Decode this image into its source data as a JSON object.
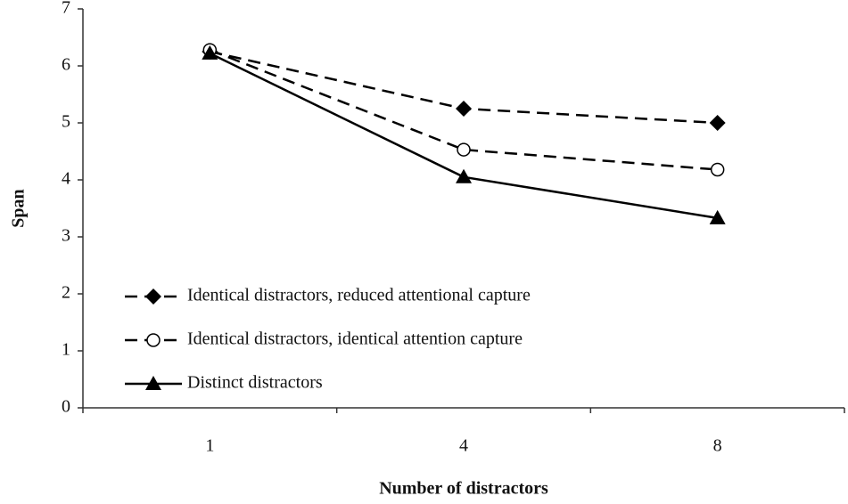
{
  "chart_data": {
    "type": "line",
    "x_label": "Number of distractors",
    "y_label": "Span",
    "categories": [
      "1",
      "4",
      "8"
    ],
    "ylim": [
      0,
      7
    ],
    "yticks": [
      0,
      1,
      2,
      3,
      4,
      5,
      6,
      7
    ],
    "legend_position": "lower left",
    "series": [
      {
        "name": "Identical distractors, reduced attentional capture",
        "color": "#000000",
        "marker": "diamond",
        "dashed": true,
        "values": [
          6.25,
          5.25,
          5.0
        ]
      },
      {
        "name": "Identical distractors, identical attention capture",
        "color": "#000000",
        "marker": "circle",
        "dashed": true,
        "values": [
          6.28,
          4.53,
          4.18
        ]
      },
      {
        "name": "Distinct distractors",
        "color": "#000000",
        "marker": "triangle",
        "dashed": false,
        "values": [
          6.22,
          4.05,
          3.33
        ]
      }
    ]
  }
}
